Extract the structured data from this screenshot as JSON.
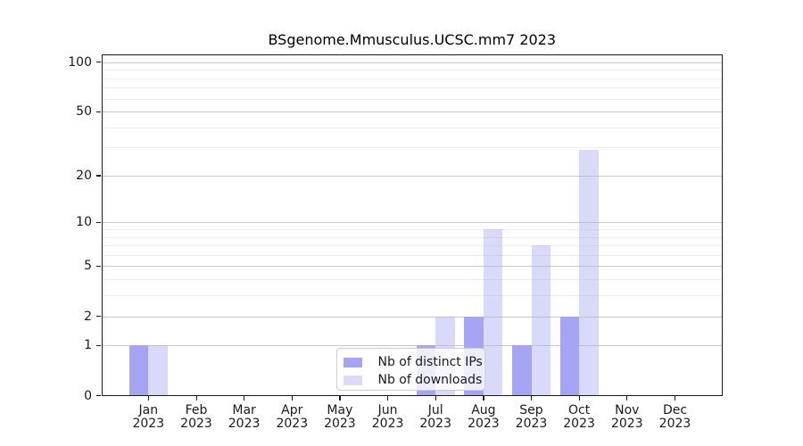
{
  "chart_data": {
    "type": "bar",
    "title": "BSgenome.Mmusculus.UCSC.mm7 2023",
    "categories": [
      "Jan",
      "Feb",
      "Mar",
      "Apr",
      "May",
      "Jun",
      "Jul",
      "Aug",
      "Sep",
      "Oct",
      "Nov",
      "Dec"
    ],
    "year": "2023",
    "series": [
      {
        "name": "Nb of distinct IPs",
        "color": "#a5a5f3",
        "swatch_color": "#a5a5f3",
        "values": [
          1,
          0,
          0,
          0,
          0,
          0,
          1,
          2,
          1,
          2,
          0,
          0
        ]
      },
      {
        "name": "Nb of downloads",
        "color": "rgba(170,170,245,0.45)",
        "swatch_color": "#dbdbf8",
        "values": [
          1,
          0,
          0,
          0,
          0,
          0,
          2,
          9,
          7,
          29,
          0,
          0
        ]
      }
    ],
    "y_scale": "log1p",
    "y_axis_ticks": [
      0,
      1,
      2,
      5,
      10,
      20,
      50,
      100
    ],
    "y_gridlines_major": [
      1,
      2,
      5,
      10,
      20,
      50,
      100
    ],
    "y_gridlines_minor": [
      3,
      4,
      6,
      7,
      8,
      9,
      30,
      40,
      60,
      70,
      80,
      90
    ],
    "ylim": [
      0,
      115
    ],
    "grid": true,
    "legend_position": "lower-center-inside",
    "axis_color": "#1a1a1a",
    "gridline_minor_color": "#ededed",
    "gridline_major_color": "#c9c9c9"
  }
}
